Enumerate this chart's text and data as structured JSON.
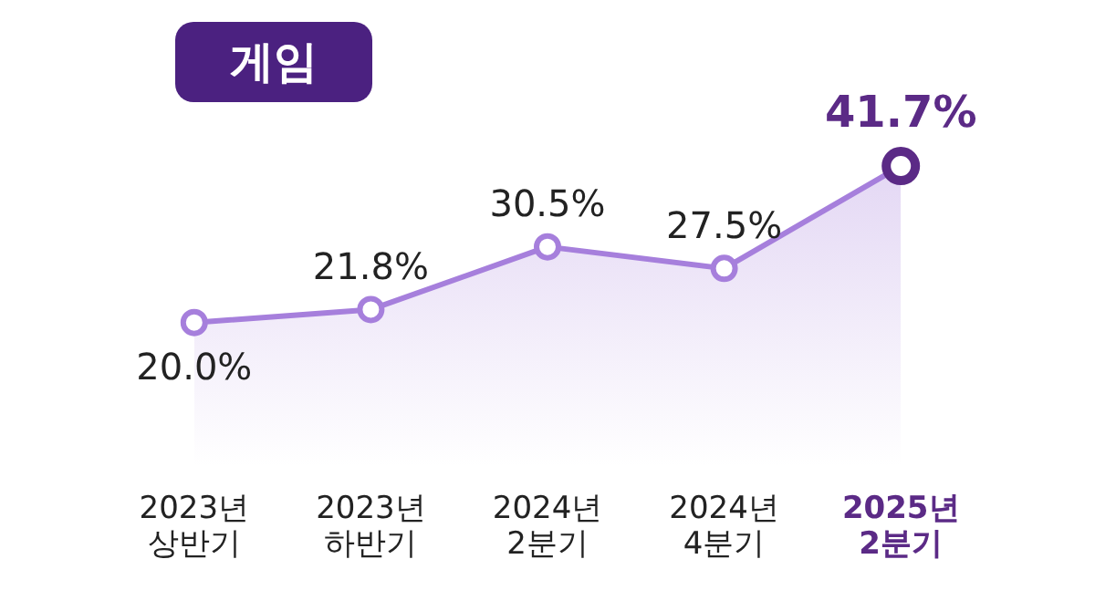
{
  "chart_data": {
    "type": "area",
    "title": "게임",
    "categories": [
      "2023년\n상반기",
      "2023년\n하반기",
      "2024년\n2분기",
      "2024년\n4분기",
      "2025년\n2분기"
    ],
    "series": [
      {
        "color": "#a67fdc",
        "colors": [
          "#a67fdc",
          "#a67fdc",
          "#a67fdc",
          "#a67fdc",
          "#5b2a86"
        ],
        "values": [
          20.0,
          21.8,
          30.5,
          27.5,
          41.7
        ],
        "value_labels": [
          "20.0%",
          "21.8%",
          "30.5%",
          "27.5%",
          "41.7%"
        ]
      }
    ],
    "marker": "circle",
    "grid": false,
    "legend": false,
    "tick_labels": "x"
  }
}
